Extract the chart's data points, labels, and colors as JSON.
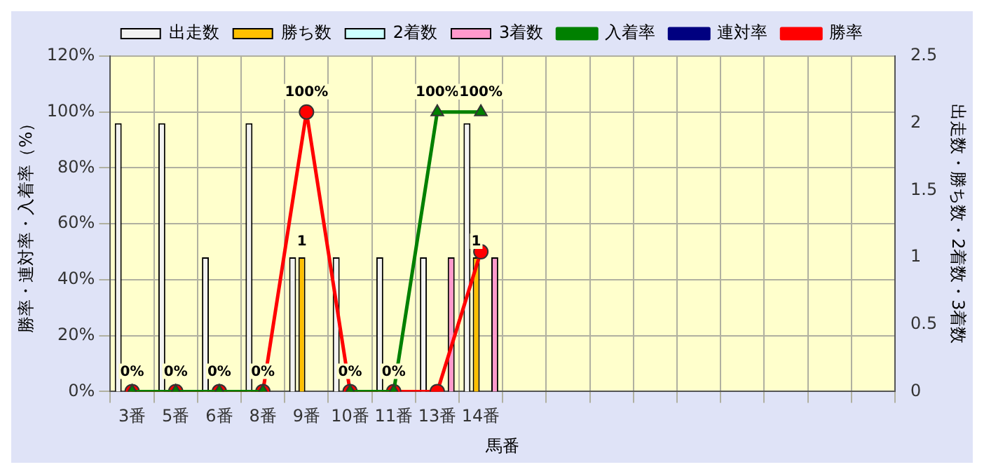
{
  "chart_data": {
    "type": "bar",
    "xlabel": "馬番",
    "ylabel": "勝率・連対率・入着率（%）",
    "y2label": "出走数・勝ち数・2着数・3着数",
    "categories": [
      "3番",
      "5番",
      "6番",
      "8番",
      "9番",
      "10番",
      "11番",
      "13番",
      "14番",
      null,
      null,
      null,
      null,
      null,
      null,
      null,
      null,
      null
    ],
    "series": [
      {
        "name": "出走数",
        "axis": "y2",
        "color": "#f2f2f2",
        "values": [
          2,
          2,
          1,
          2,
          1,
          1,
          1,
          1,
          2,
          null,
          null,
          null,
          null,
          null,
          null,
          null,
          null,
          null
        ]
      },
      {
        "name": "勝ち数",
        "axis": "y2",
        "color": "#ffc000",
        "values": [
          0,
          0,
          0,
          0,
          1,
          0,
          0,
          0,
          1,
          null,
          null,
          null,
          null,
          null,
          null,
          null,
          null,
          null
        ],
        "value_labels": [
          null,
          null,
          null,
          null,
          "1",
          null,
          null,
          null,
          "1",
          null,
          null,
          null,
          null,
          null,
          null,
          null,
          null,
          null
        ]
      },
      {
        "name": "2着数",
        "axis": "y2",
        "color": "#ccffff",
        "values": [
          0,
          0,
          0,
          0,
          0,
          0,
          0,
          0,
          0,
          null,
          null,
          null,
          null,
          null,
          null,
          null,
          null,
          null
        ]
      },
      {
        "name": "3着数",
        "axis": "y2",
        "color": "#ff99cc",
        "values": [
          0,
          0,
          0,
          0,
          0,
          0,
          0,
          1,
          1,
          null,
          null,
          null,
          null,
          null,
          null,
          null,
          null,
          null
        ]
      },
      {
        "name": "入着率",
        "type": "line",
        "color": "#008000",
        "marker": "triangle",
        "values": [
          0,
          0,
          0,
          0,
          null,
          0,
          0,
          100,
          100,
          null,
          null,
          null,
          null,
          null,
          null,
          null,
          null,
          null
        ],
        "value_labels": [
          null,
          null,
          null,
          null,
          null,
          null,
          null,
          "100%",
          "100%",
          null,
          null,
          null,
          null,
          null,
          null,
          null,
          null,
          null
        ]
      },
      {
        "name": "連対率",
        "type": "line",
        "color": "#000080",
        "marker": "diamond",
        "values": [
          null,
          null,
          null,
          null,
          null,
          null,
          null,
          null,
          null,
          null,
          null,
          null,
          null,
          null,
          null,
          null,
          null,
          null
        ]
      },
      {
        "name": "勝率",
        "type": "line",
        "color": "#ff0000",
        "marker": "circle",
        "values": [
          0,
          0,
          0,
          0,
          100,
          0,
          0,
          0,
          50,
          null,
          null,
          null,
          null,
          null,
          null,
          null,
          null,
          null
        ],
        "value_labels": [
          "0%",
          "0%",
          "0%",
          "0%",
          "100%",
          "0%",
          "0%",
          null,
          null,
          null,
          null,
          null,
          null,
          null,
          null,
          null,
          null,
          null
        ]
      }
    ],
    "ylim": [
      0,
      120
    ],
    "yticks": [
      {
        "value": 0,
        "label": "0%"
      },
      {
        "value": 20,
        "label": "20%"
      },
      {
        "value": 40,
        "label": "40%"
      },
      {
        "value": 60,
        "label": "60%"
      },
      {
        "value": 80,
        "label": "80%"
      },
      {
        "value": 100,
        "label": "100%"
      },
      {
        "value": 120,
        "label": "120%"
      }
    ],
    "y2lim": [
      0,
      2.5
    ],
    "y2ticks": [
      0,
      0.5,
      1,
      1.5,
      2,
      2.5
    ],
    "grid": true,
    "legend": "top"
  }
}
